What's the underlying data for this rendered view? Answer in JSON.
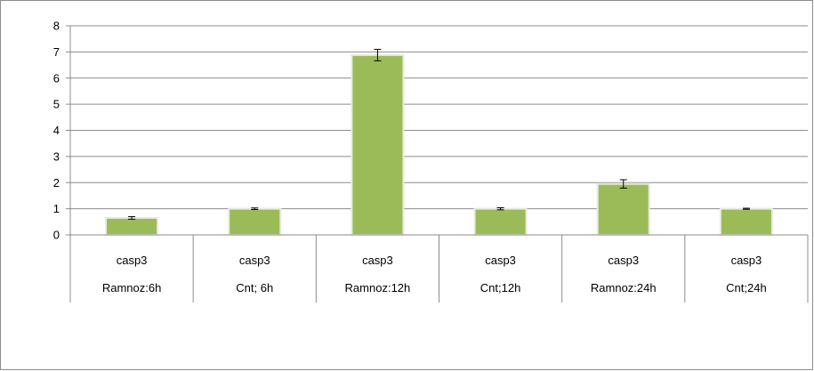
{
  "chart_data": {
    "type": "bar",
    "title": "",
    "xlabel": "",
    "ylabel": "",
    "ylim": [
      0,
      8
    ],
    "yticks": [
      0,
      1,
      2,
      3,
      4,
      5,
      6,
      7,
      8
    ],
    "grid": true,
    "legend": "none",
    "categories": [
      {
        "gene": "casp3",
        "group": "Ramnoz:6h"
      },
      {
        "gene": "casp3",
        "group": "Cnt; 6h"
      },
      {
        "gene": "casp3",
        "group": "Ramnoz:12h"
      },
      {
        "gene": "casp3",
        "group": "Cnt;12h"
      },
      {
        "gene": "casp3",
        "group": "Ramnoz:24h"
      },
      {
        "gene": "casp3",
        "group": "Cnt;24h"
      }
    ],
    "series": [
      {
        "values": [
          0.65,
          1.0,
          6.88,
          1.0,
          1.95,
          1.0
        ],
        "errors": [
          0.05,
          0.03,
          0.22,
          0.04,
          0.16,
          0.02
        ]
      }
    ],
    "colors": {
      "bar": "#9bbb59",
      "bar_edge": "#e6ecd9",
      "grid": "#8c8c8c",
      "axis": "#8c8c8c",
      "error_bar": "#000000"
    }
  }
}
